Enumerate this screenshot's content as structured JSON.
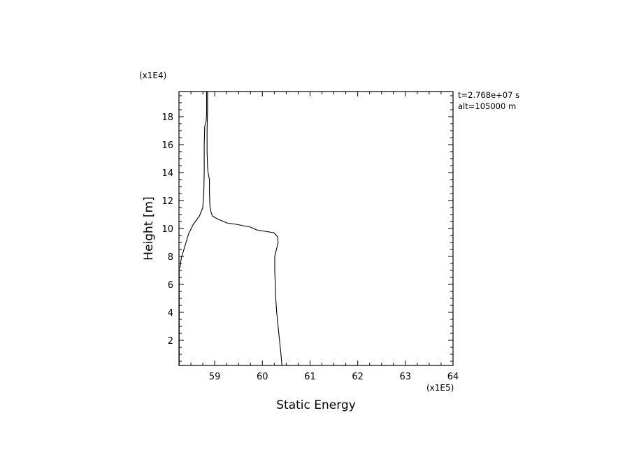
{
  "chart_data": {
    "type": "line",
    "title": "",
    "xlabel": "Static Energy",
    "ylabel": "Height [m]",
    "x_multiplier": "(x1E5)",
    "y_multiplier": "(x1E4)",
    "xlim": [
      58.25,
      64
    ],
    "ylim": [
      0.2,
      19.8
    ],
    "x_ticks": [
      59,
      60,
      61,
      62,
      63,
      64
    ],
    "y_ticks": [
      2,
      4,
      6,
      8,
      10,
      12,
      14,
      16,
      18
    ],
    "annotations": [
      "t=2.768e+07 s",
      "alt=105000 m"
    ],
    "grid": false,
    "series": [
      {
        "values_xy": [
          [
            58.27,
            7.2
          ],
          [
            58.3,
            7.9
          ],
          [
            58.38,
            8.8
          ],
          [
            58.45,
            9.6
          ],
          [
            58.55,
            10.3
          ],
          [
            58.68,
            10.9
          ],
          [
            58.75,
            11.5
          ],
          [
            58.77,
            12.5
          ],
          [
            58.78,
            14.0
          ],
          [
            58.78,
            16.0
          ],
          [
            58.79,
            17.3
          ],
          [
            58.82,
            17.7
          ],
          [
            58.83,
            18.2
          ],
          [
            58.83,
            19.8
          ]
        ]
      },
      {
        "values_xy": [
          [
            60.41,
            0.2
          ],
          [
            60.39,
            1.0
          ],
          [
            60.36,
            2.0
          ],
          [
            60.33,
            3.0
          ],
          [
            60.3,
            4.0
          ],
          [
            60.28,
            5.0
          ],
          [
            60.27,
            6.0
          ],
          [
            60.26,
            7.0
          ],
          [
            60.26,
            7.5
          ],
          [
            60.26,
            8.0
          ],
          [
            60.28,
            8.3
          ],
          [
            60.31,
            8.7
          ],
          [
            60.33,
            9.0
          ],
          [
            60.32,
            9.4
          ],
          [
            60.24,
            9.7
          ],
          [
            60.05,
            9.8
          ],
          [
            59.88,
            9.9
          ],
          [
            59.75,
            10.1
          ],
          [
            59.6,
            10.2
          ],
          [
            59.45,
            10.3
          ],
          [
            59.25,
            10.4
          ],
          [
            59.15,
            10.55
          ],
          [
            59.05,
            10.7
          ],
          [
            58.95,
            10.9
          ],
          [
            58.92,
            11.2
          ],
          [
            58.9,
            11.6
          ],
          [
            58.89,
            12.5
          ],
          [
            58.89,
            13.5
          ],
          [
            58.86,
            14.0
          ],
          [
            58.85,
            14.4
          ],
          [
            58.84,
            15.5
          ],
          [
            58.84,
            17.0
          ],
          [
            58.85,
            18.5
          ],
          [
            58.85,
            19.8
          ]
        ]
      },
      {
        "values_xy": [
          [
            58.255,
            0.2
          ],
          [
            58.255,
            7.2
          ]
        ]
      }
    ]
  }
}
